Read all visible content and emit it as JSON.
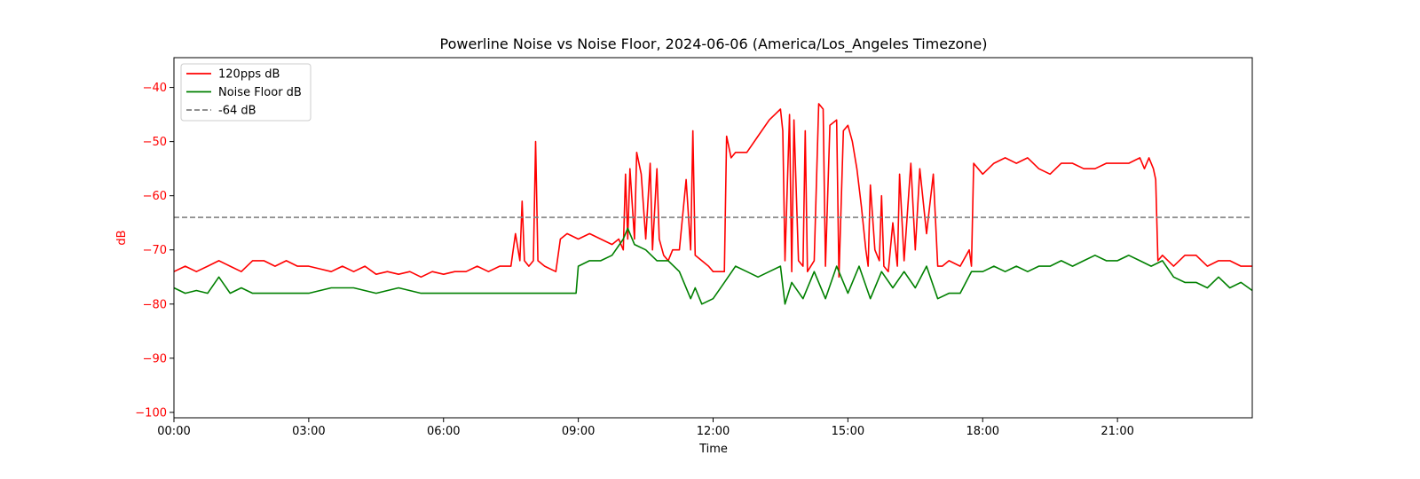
{
  "chart_data": {
    "type": "line",
    "title": "Powerline Noise vs Noise Floor, 2024-06-06 (America/Los_Angeles Timezone)",
    "xlabel": "Time",
    "ylabel": "dB",
    "x_unit": "hours",
    "xlim": [
      0,
      24
    ],
    "ylim": [
      -101,
      -34.5
    ],
    "x_ticks": [
      0,
      3,
      6,
      9,
      12,
      15,
      18,
      21
    ],
    "x_tick_labels": [
      "00:00",
      "03:00",
      "06:00",
      "09:00",
      "12:00",
      "15:00",
      "18:00",
      "21:00"
    ],
    "y_ticks": [
      -100,
      -90,
      -80,
      -70,
      -60,
      -50,
      -40
    ],
    "y_tick_labels": [
      "−100",
      "−90",
      "−80",
      "−70",
      "−60",
      "−50",
      "−40"
    ],
    "grid": false,
    "legend_position": "top-left",
    "ylabel_color": "#ff0000",
    "series": [
      {
        "name": "120pps dB",
        "color": "#ff0000",
        "x": [
          0,
          0.25,
          0.5,
          0.75,
          1,
          1.25,
          1.5,
          1.75,
          2,
          2.25,
          2.5,
          2.75,
          3,
          3.25,
          3.5,
          3.75,
          4,
          4.25,
          4.5,
          4.75,
          5,
          5.25,
          5.5,
          5.75,
          6,
          6.25,
          6.5,
          6.75,
          7,
          7.25,
          7.5,
          7.6,
          7.7,
          7.75,
          7.8,
          7.9,
          8,
          8.05,
          8.1,
          8.25,
          8.5,
          8.6,
          8.75,
          9,
          9.25,
          9.5,
          9.75,
          9.9,
          10,
          10.05,
          10.1,
          10.15,
          10.25,
          10.3,
          10.4,
          10.5,
          10.6,
          10.65,
          10.75,
          10.8,
          10.9,
          11,
          11.1,
          11.25,
          11.4,
          11.5,
          11.55,
          11.6,
          11.75,
          11.9,
          12,
          12.25,
          12.3,
          12.4,
          12.5,
          12.75,
          13,
          13.25,
          13.5,
          13.55,
          13.6,
          13.7,
          13.75,
          13.8,
          13.9,
          14,
          14.05,
          14.1,
          14.25,
          14.35,
          14.45,
          14.5,
          14.6,
          14.75,
          14.8,
          14.9,
          15,
          15.1,
          15.2,
          15.3,
          15.4,
          15.45,
          15.5,
          15.6,
          15.7,
          15.75,
          15.8,
          15.9,
          16,
          16.1,
          16.15,
          16.25,
          16.4,
          16.5,
          16.6,
          16.75,
          16.9,
          17,
          17.1,
          17.25,
          17.5,
          17.7,
          17.75,
          17.8,
          18,
          18.25,
          18.5,
          18.75,
          19,
          19.25,
          19.5,
          19.75,
          20,
          20.25,
          20.5,
          20.75,
          21,
          21.25,
          21.5,
          21.6,
          21.7,
          21.8,
          21.85,
          21.9,
          22,
          22.25,
          22.5,
          22.75,
          23,
          23.25,
          23.5,
          23.75,
          24
        ],
        "y": [
          -74,
          -73,
          -74,
          -73,
          -72,
          -73,
          -74,
          -72,
          -72,
          -73,
          -72,
          -73,
          -73,
          -73.5,
          -74,
          -73,
          -74,
          -73,
          -74.5,
          -74,
          -74.5,
          -74,
          -75,
          -74,
          -74.5,
          -74,
          -74,
          -73,
          -74,
          -73,
          -73,
          -67,
          -72,
          -61,
          -72,
          -73,
          -72,
          -50,
          -72,
          -73,
          -74,
          -68,
          -67,
          -68,
          -67,
          -68,
          -69,
          -68,
          -70,
          -56,
          -68,
          -55,
          -68,
          -52,
          -56,
          -68,
          -54,
          -70,
          -55,
          -68,
          -71,
          -72,
          -70,
          -70,
          -57,
          -70,
          -48,
          -71,
          -72,
          -73,
          -74,
          -74,
          -49,
          -53,
          -52,
          -52,
          -49,
          -46,
          -44,
          -48,
          -72,
          -45,
          -74,
          -46,
          -72,
          -73,
          -48,
          -74,
          -72,
          -43,
          -44,
          -73,
          -47,
          -46,
          -75,
          -48,
          -47,
          -50,
          -55,
          -62,
          -70,
          -73,
          -58,
          -70,
          -72,
          -60,
          -73,
          -74,
          -65,
          -73,
          -56,
          -72,
          -54,
          -70,
          -55,
          -67,
          -56,
          -73,
          -73,
          -72,
          -73,
          -70,
          -73,
          -54,
          -56,
          -54,
          -53,
          -54,
          -53,
          -55,
          -56,
          -54,
          -54,
          -55,
          -55,
          -54,
          -54,
          -54,
          -53,
          -55,
          -53,
          -55,
          -57,
          -72,
          -71,
          -73,
          -71,
          -71,
          -73,
          -72,
          -72,
          -73,
          -73
        ]
      },
      {
        "name": "Noise Floor dB",
        "color": "#008000",
        "x": [
          0,
          0.25,
          0.5,
          0.75,
          1,
          1.25,
          1.5,
          1.75,
          2,
          2.5,
          3,
          3.5,
          4,
          4.5,
          5,
          5.5,
          6,
          6.5,
          7,
          7.5,
          8,
          8.5,
          8.95,
          9,
          9.25,
          9.5,
          9.75,
          10,
          10.1,
          10.25,
          10.5,
          10.75,
          11,
          11.25,
          11.5,
          11.6,
          11.75,
          12,
          12.25,
          12.5,
          12.75,
          13,
          13.25,
          13.5,
          13.6,
          13.75,
          14,
          14.25,
          14.5,
          14.75,
          15,
          15.25,
          15.5,
          15.75,
          16,
          16.25,
          16.5,
          16.75,
          17,
          17.25,
          17.5,
          17.75,
          18,
          18.25,
          18.5,
          18.75,
          19,
          19.25,
          19.5,
          19.75,
          20,
          20.25,
          20.5,
          20.75,
          21,
          21.25,
          21.5,
          21.75,
          22,
          22.25,
          22.5,
          22.75,
          23,
          23.25,
          23.5,
          23.75,
          24
        ],
        "y": [
          -77,
          -78,
          -77.5,
          -78,
          -75,
          -78,
          -77,
          -78,
          -78,
          -78,
          -78,
          -77,
          -77,
          -78,
          -77,
          -78,
          -78,
          -78,
          -78,
          -78,
          -78,
          -78,
          -78,
          -73,
          -72,
          -72,
          -71,
          -68,
          -66,
          -69,
          -70,
          -72,
          -72,
          -74,
          -79,
          -77,
          -80,
          -79,
          -76,
          -73,
          -74,
          -75,
          -74,
          -73,
          -80,
          -76,
          -79,
          -74,
          -79,
          -73,
          -78,
          -73,
          -79,
          -74,
          -77,
          -74,
          -77,
          -73,
          -79,
          -78,
          -78,
          -74,
          -74,
          -73,
          -74,
          -73,
          -74,
          -73,
          -73,
          -72,
          -73,
          -72,
          -71,
          -72,
          -72,
          -71,
          -72,
          -73,
          -72,
          -75,
          -76,
          -76,
          -77,
          -75,
          -77,
          -76,
          -77.5
        ]
      },
      {
        "name": "-64 dB",
        "color": "#808080",
        "dashed": true,
        "x": [
          0,
          24
        ],
        "y": [
          -64,
          -64
        ]
      }
    ]
  }
}
